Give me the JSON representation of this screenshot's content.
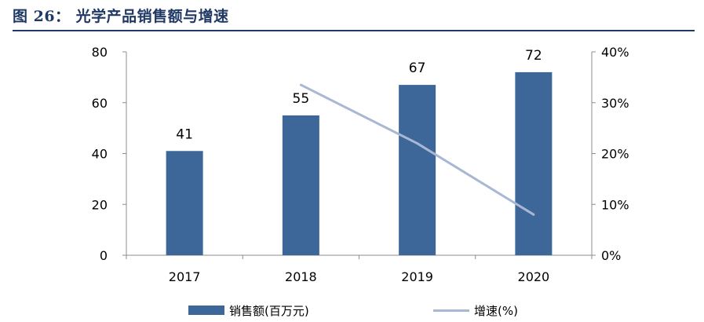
{
  "title": "图 26：  光学产品销售额与增速",
  "colors": {
    "bar": "#3e6799",
    "line": "#a8b8d4",
    "axis": "#8c8c8c",
    "title": "#1f3864"
  },
  "chart_data": {
    "type": "bar",
    "categories": [
      "2017",
      "2018",
      "2019",
      "2020"
    ],
    "series": [
      {
        "name": "销售额(百万元)",
        "type": "bar",
        "axis": "left",
        "values": [
          41,
          55,
          67,
          72
        ],
        "data_labels": [
          "41",
          "55",
          "67",
          "72"
        ]
      },
      {
        "name": "增速(%)",
        "type": "line",
        "axis": "right",
        "values": [
          null,
          33.5,
          22,
          8
        ]
      }
    ],
    "y_left": {
      "lim": [
        0,
        80
      ],
      "ticks": [
        "0",
        "20",
        "40",
        "60",
        "80"
      ]
    },
    "y_right": {
      "lim": [
        0,
        40
      ],
      "ticks": [
        "0%",
        "10%",
        "20%",
        "30%",
        "40%"
      ]
    },
    "grid": false,
    "legend_position": "bottom"
  }
}
